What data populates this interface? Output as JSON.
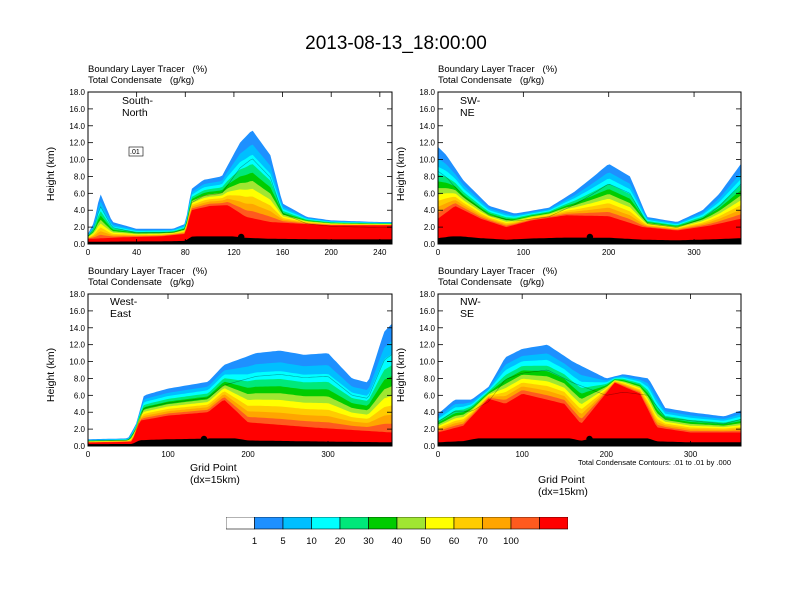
{
  "title": "2013-08-13_18:00:00",
  "header_line1": "Boundary Layer Tracer   (%)",
  "header_line2": "Total Condensate   (g/kg)",
  "ylabel": "Height (km)",
  "xlabel": "Grid Point (dx=15km)",
  "contour_note": "Total Condensate Contours: .01 to .01 by .000",
  "colors": [
    "#ffffff",
    "#1e90ff",
    "#00bfff",
    "#00ffff",
    "#00e87a",
    "#00cc00",
    "#a0e632",
    "#ffff00",
    "#ffcc00",
    "#ffa500",
    "#ff5a1e",
    "#ff0000"
  ],
  "colorbar": {
    "labels": [
      "1",
      "5",
      "10",
      "20",
      "30",
      "40",
      "50",
      "60",
      "70",
      "100"
    ]
  },
  "chart_data": [
    {
      "type": "heatmap",
      "label": "South-North",
      "x_ticks": [
        "0",
        "40",
        "80",
        "120",
        "160",
        "200",
        "240"
      ],
      "x_tick_values": [
        0,
        40,
        80,
        120,
        160,
        200,
        240
      ],
      "xlim": [
        0,
        250
      ],
      "y_ticks": [
        "0.0",
        "2.0",
        "4.0",
        "6.0",
        "8.0",
        "10.0",
        "12.0",
        "14.0",
        "16.0",
        "18.0"
      ],
      "ylim": [
        0,
        18
      ],
      "contour_inline_label": ".01",
      "marker_x": 126,
      "tracer_top_profile": [
        [
          0,
          1.2
        ],
        [
          5,
          2.6
        ],
        [
          10,
          6.0
        ],
        [
          20,
          2.6
        ],
        [
          40,
          1.8
        ],
        [
          70,
          1.8
        ],
        [
          80,
          2.4
        ],
        [
          85,
          6.5
        ],
        [
          95,
          7.6
        ],
        [
          110,
          8.0
        ],
        [
          125,
          12.0
        ],
        [
          135,
          13.5
        ],
        [
          150,
          10.5
        ],
        [
          160,
          4.8
        ],
        [
          180,
          3.2
        ],
        [
          200,
          2.8
        ],
        [
          240,
          2.6
        ],
        [
          250,
          2.6
        ]
      ],
      "core_top_profile": [
        [
          0,
          0.6
        ],
        [
          30,
          0.8
        ],
        [
          60,
          0.9
        ],
        [
          80,
          1.2
        ],
        [
          85,
          4.0
        ],
        [
          100,
          4.5
        ],
        [
          115,
          4.6
        ],
        [
          130,
          3.2
        ],
        [
          150,
          2.6
        ],
        [
          200,
          2.2
        ],
        [
          250,
          2.2
        ]
      ]
    },
    {
      "type": "heatmap",
      "label": "SW-NE",
      "x_ticks": [
        "0",
        "100",
        "200",
        "300"
      ],
      "x_tick_values": [
        0,
        100,
        200,
        300
      ],
      "xlim": [
        0,
        355
      ],
      "y_ticks": [
        "0.0",
        "2.0",
        "4.0",
        "6.0",
        "8.0",
        "10.0",
        "12.0",
        "14.0",
        "16.0",
        "18.0"
      ],
      "ylim": [
        0,
        18
      ],
      "contour_inline_label": "",
      "marker_x": 178,
      "tracer_top_profile": [
        [
          0,
          11.5
        ],
        [
          10,
          10.5
        ],
        [
          30,
          7.5
        ],
        [
          60,
          4.5
        ],
        [
          90,
          3.6
        ],
        [
          130,
          4.3
        ],
        [
          160,
          6.2
        ],
        [
          180,
          7.8
        ],
        [
          200,
          9.5
        ],
        [
          225,
          8.0
        ],
        [
          245,
          3.2
        ],
        [
          280,
          2.6
        ],
        [
          310,
          4.0
        ],
        [
          330,
          6.0
        ],
        [
          355,
          9.5
        ]
      ],
      "core_top_profile": [
        [
          0,
          3.0
        ],
        [
          20,
          4.5
        ],
        [
          50,
          3.0
        ],
        [
          80,
          2.0
        ],
        [
          110,
          2.8
        ],
        [
          150,
          3.4
        ],
        [
          200,
          3.3
        ],
        [
          240,
          2.0
        ],
        [
          280,
          1.6
        ],
        [
          320,
          2.2
        ],
        [
          355,
          3.0
        ]
      ]
    },
    {
      "type": "heatmap",
      "label": "West-East",
      "x_ticks": [
        "0",
        "100",
        "200",
        "300"
      ],
      "x_tick_values": [
        0,
        100,
        200,
        300
      ],
      "xlim": [
        0,
        380
      ],
      "y_ticks": [
        "0.0",
        "2.0",
        "4.0",
        "6.0",
        "8.0",
        "10.0",
        "12.0",
        "14.0",
        "16.0",
        "18.0"
      ],
      "ylim": [
        0,
        18
      ],
      "contour_inline_label": "",
      "marker_x": 145,
      "tracer_top_profile": [
        [
          0,
          0.8
        ],
        [
          50,
          0.9
        ],
        [
          60,
          2.6
        ],
        [
          70,
          6.0
        ],
        [
          100,
          6.8
        ],
        [
          150,
          7.6
        ],
        [
          170,
          9.6
        ],
        [
          210,
          11.0
        ],
        [
          240,
          11.3
        ],
        [
          270,
          10.8
        ],
        [
          300,
          11.0
        ],
        [
          330,
          8.0
        ],
        [
          350,
          7.5
        ],
        [
          370,
          13.5
        ],
        [
          380,
          14.5
        ]
      ],
      "core_top_profile": [
        [
          0,
          0.4
        ],
        [
          55,
          0.5
        ],
        [
          65,
          3.0
        ],
        [
          100,
          3.6
        ],
        [
          150,
          4.0
        ],
        [
          170,
          5.5
        ],
        [
          200,
          2.8
        ],
        [
          280,
          2.2
        ],
        [
          380,
          1.6
        ]
      ]
    },
    {
      "type": "heatmap",
      "label": "NW-SE",
      "x_ticks": [
        "0",
        "100",
        "200",
        "300"
      ],
      "x_tick_values": [
        0,
        100,
        200,
        300
      ],
      "xlim": [
        0,
        360
      ],
      "y_ticks": [
        "0.0",
        "2.0",
        "4.0",
        "6.0",
        "8.0",
        "10.0",
        "12.0",
        "14.0",
        "16.0",
        "18.0"
      ],
      "ylim": [
        0,
        18
      ],
      "contour_inline_label": "",
      "marker_x": 180,
      "tracer_top_profile": [
        [
          0,
          3.8
        ],
        [
          20,
          5.5
        ],
        [
          40,
          5.5
        ],
        [
          60,
          7.0
        ],
        [
          80,
          10.5
        ],
        [
          100,
          11.5
        ],
        [
          130,
          12.0
        ],
        [
          160,
          10.0
        ],
        [
          200,
          8.0
        ],
        [
          220,
          8.5
        ],
        [
          250,
          8.0
        ],
        [
          270,
          4.5
        ],
        [
          300,
          4.0
        ],
        [
          340,
          3.5
        ],
        [
          360,
          4.2
        ]
      ],
      "core_top_profile": [
        [
          0,
          1.6
        ],
        [
          30,
          2.4
        ],
        [
          60,
          5.6
        ],
        [
          80,
          5.0
        ],
        [
          100,
          6.2
        ],
        [
          150,
          5.0
        ],
        [
          170,
          2.6
        ],
        [
          210,
          7.5
        ],
        [
          240,
          6.2
        ],
        [
          260,
          2.2
        ],
        [
          300,
          1.6
        ],
        [
          360,
          1.6
        ]
      ]
    }
  ]
}
